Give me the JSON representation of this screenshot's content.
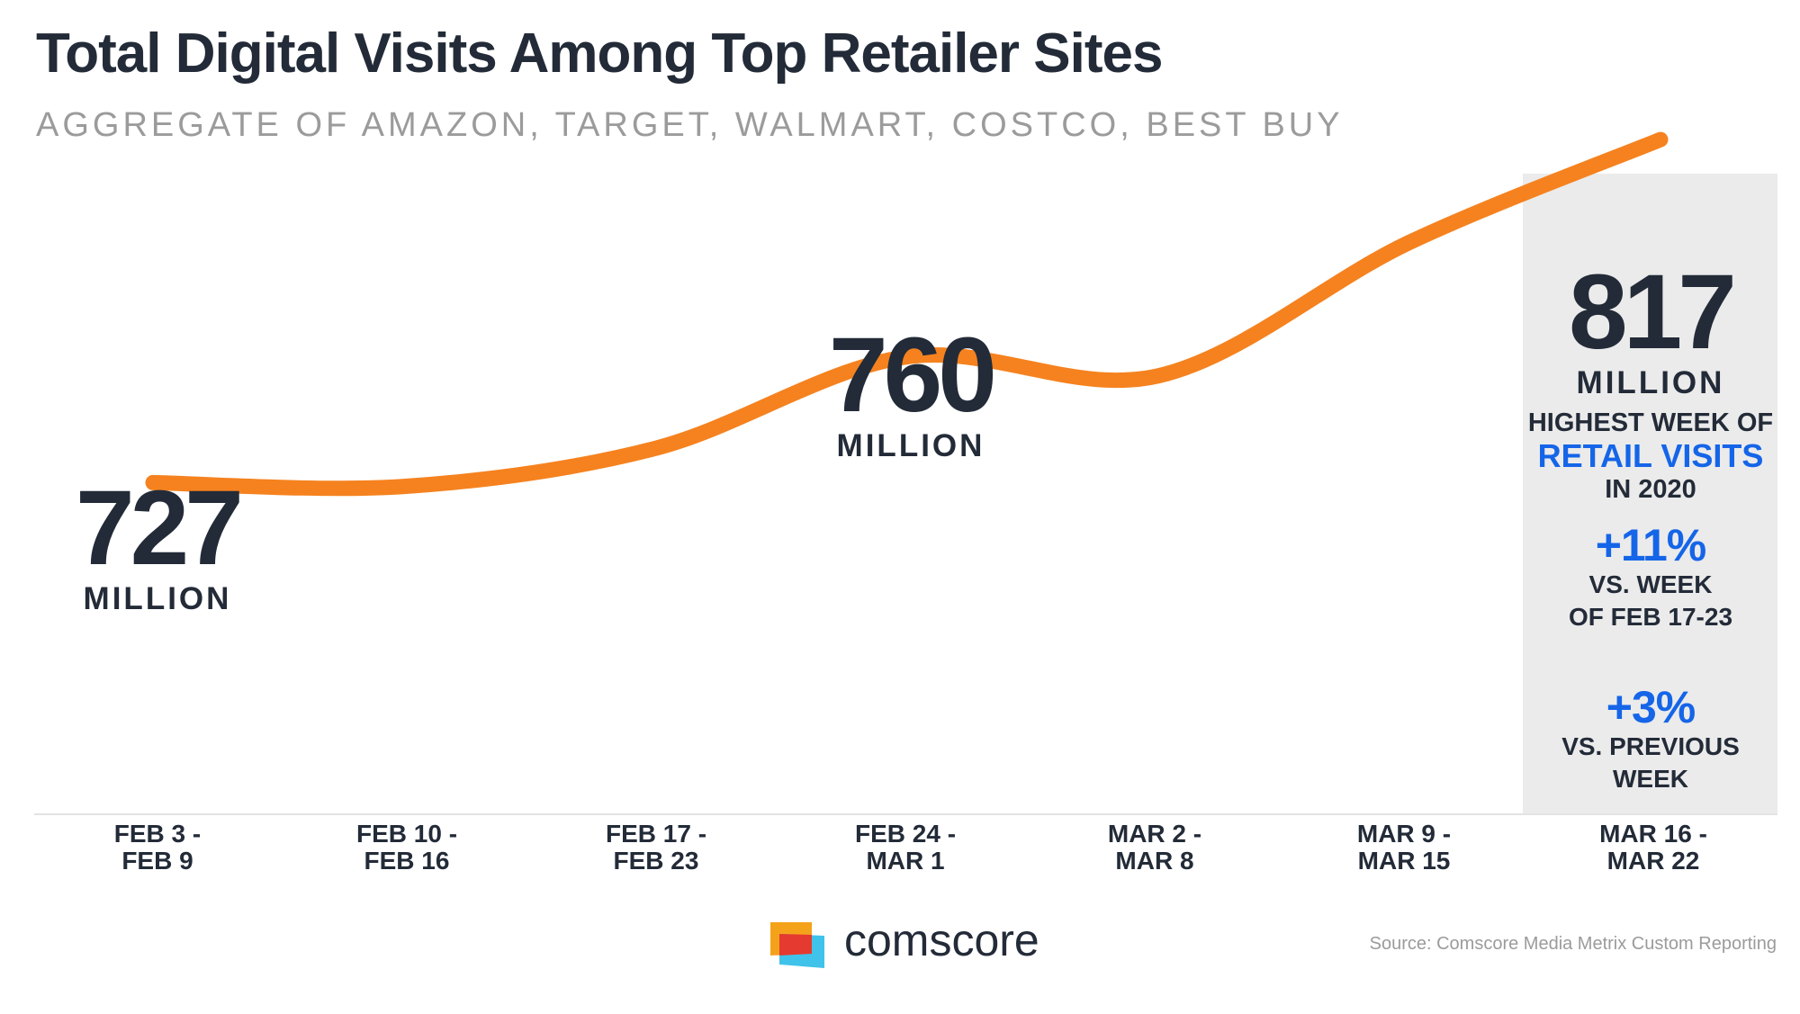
{
  "chart_data": {
    "type": "line",
    "title": "Total Digital Visits Among Top Retailer Sites",
    "subtitle": "AGGREGATE OF AMAZON, TARGET, WALMART, COSTCO, BEST BUY",
    "categories": [
      [
        "FEB 3 -",
        "FEB 9"
      ],
      [
        "FEB 10 -",
        "FEB 16"
      ],
      [
        "FEB 17 -",
        "FEB 23"
      ],
      [
        "FEB 24 -",
        "MAR 1"
      ],
      [
        "MAR 2 -",
        "MAR 8"
      ],
      [
        "MAR 9 -",
        "MAR 15"
      ],
      [
        "MAR 16 -",
        "MAR 22"
      ]
    ],
    "series": [
      {
        "values": [
          727,
          726,
          736,
          760,
          755,
          790,
          817
        ],
        "color": "#f5821f"
      }
    ],
    "ylim": [
      640,
      830
    ],
    "grid": false,
    "highlight_index": 6,
    "annotations": [
      {
        "index": 0,
        "value": "727",
        "unit": "MILLION"
      },
      {
        "index": 3,
        "value": "760",
        "unit": "MILLION"
      },
      {
        "index": 6,
        "value": "817",
        "unit": "MILLION"
      }
    ]
  },
  "panel": {
    "line1": "HIGHEST WEEK OF",
    "line2": "RETAIL VISITS",
    "line3": "IN 2020",
    "stat1_value": "+11%",
    "stat1_line1": "VS. WEEK",
    "stat1_line2": "OF FEB 17-23",
    "stat2_value": "+3%",
    "stat2_line1": "VS. PREVIOUS",
    "stat2_line2": "WEEK"
  },
  "colors": {
    "line": "#f5821f",
    "text_dark": "#232b38",
    "accent_blue": "#1565e8",
    "panel_bg": "#ebebeb",
    "subtitle_gray": "#9b9b9b"
  },
  "footer": {
    "brand": "comscore",
    "logo_icon": "comscore-logo-icon",
    "source": "Source: Comscore Media Metrix Custom Reporting"
  }
}
